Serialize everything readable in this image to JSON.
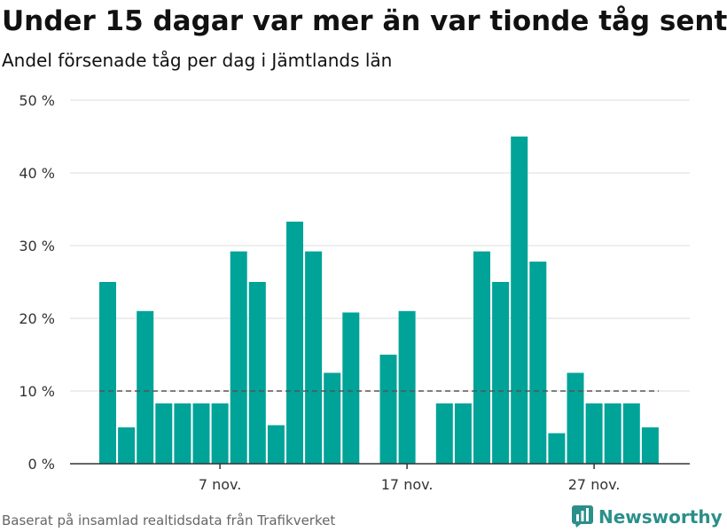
{
  "title": "Under 15 dagar var mer än var tionde tåg sent",
  "subtitle": "Andel försenade tåg per dag i Jämtlands län",
  "footer": {
    "source": "Baserat på insamlad realtidsdata från Trafikverket",
    "brand": "Newsworthy",
    "logo_icon": "bar-chart-logo-icon"
  },
  "colors": {
    "bar": "#00a398",
    "reference_line": "#555555",
    "grid": "#dddddd",
    "axis": "#333333",
    "brand": "#2b8f8a"
  },
  "chart_data": {
    "type": "bar",
    "title": "Under 15 dagar var mer än var tionde tåg sent",
    "subtitle": "Andel försenade tåg per dag i Jämtlands län",
    "xlabel": "",
    "ylabel": "",
    "ylim": [
      0,
      50
    ],
    "yticks": [
      0,
      10,
      20,
      30,
      40,
      50
    ],
    "ytick_labels": [
      "0 %",
      "10 %",
      "20 %",
      "30 %",
      "40 %",
      "50 %"
    ],
    "xtick_labels": [
      {
        "date": "2019-11-07",
        "label": "7 nov."
      },
      {
        "date": "2019-11-17",
        "label": "17 nov."
      },
      {
        "date": "2019-11-27",
        "label": "27 nov."
      }
    ],
    "grid": true,
    "reference_line": {
      "value": 10,
      "style": "dashed"
    },
    "x": [
      "2019-11-01",
      "2019-11-02",
      "2019-11-03",
      "2019-11-04",
      "2019-11-05",
      "2019-11-06",
      "2019-11-07",
      "2019-11-08",
      "2019-11-09",
      "2019-11-10",
      "2019-11-11",
      "2019-11-12",
      "2019-11-13",
      "2019-11-14",
      "2019-11-15",
      "2019-11-16",
      "2019-11-17",
      "2019-11-18",
      "2019-11-19",
      "2019-11-20",
      "2019-11-21",
      "2019-11-22",
      "2019-11-23",
      "2019-11-24",
      "2019-11-25",
      "2019-11-26",
      "2019-11-27",
      "2019-11-28",
      "2019-11-29",
      "2019-11-30"
    ],
    "values": [
      25,
      5,
      21,
      8.3,
      8.3,
      8.3,
      8.3,
      29.2,
      25,
      5.3,
      33.3,
      29.2,
      12.5,
      20.8,
      null,
      15,
      21,
      null,
      8.3,
      8.3,
      29.2,
      25,
      45,
      27.8,
      4.2,
      12.5,
      8.3,
      8.3,
      8.3,
      5
    ]
  }
}
